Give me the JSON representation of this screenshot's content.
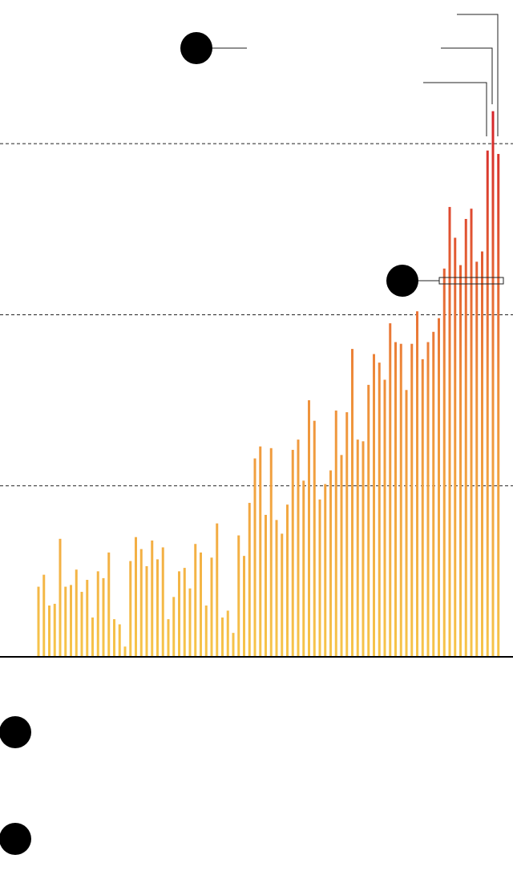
{
  "chart_data": {
    "type": "bar",
    "values": [
      0.41,
      0.48,
      0.3,
      0.31,
      0.69,
      0.41,
      0.42,
      0.51,
      0.38,
      0.45,
      0.23,
      0.5,
      0.46,
      0.61,
      0.22,
      0.19,
      0.06,
      0.56,
      0.7,
      0.63,
      0.53,
      0.68,
      0.57,
      0.64,
      0.22,
      0.35,
      0.5,
      0.52,
      0.4,
      0.66,
      0.61,
      0.3,
      0.58,
      0.78,
      0.23,
      0.27,
      0.14,
      0.71,
      0.59,
      0.9,
      1.16,
      1.23,
      0.83,
      1.22,
      0.8,
      0.72,
      0.89,
      1.21,
      1.27,
      1.03,
      1.5,
      1.38,
      0.92,
      1.01,
      1.09,
      1.44,
      1.18,
      1.43,
      1.8,
      1.27,
      1.26,
      1.59,
      1.77,
      1.72,
      1.62,
      1.95,
      1.84,
      1.83,
      1.56,
      1.83,
      2.02,
      1.74,
      1.84,
      1.9,
      1.98,
      2.27,
      2.63,
      2.45,
      2.29,
      2.56,
      2.62,
      2.31,
      2.37,
      2.96,
      3.19,
      2.94
    ],
    "ylim": [
      0,
      3.84
    ],
    "yticks": [
      1,
      2,
      3
    ],
    "grid": true,
    "gradient": [
      "#f6c54a",
      "#ee8d3a",
      "#d5222a"
    ]
  }
}
